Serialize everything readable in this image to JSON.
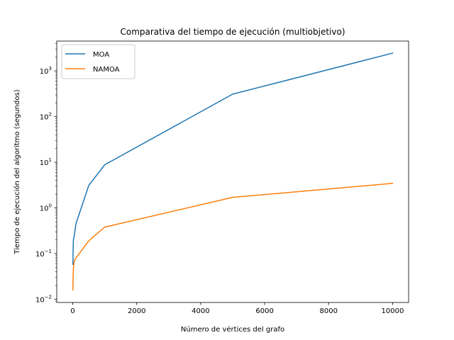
{
  "chart_data": {
    "type": "line",
    "title": "Comparativa del tiempo de ejecución (multiobjetivo)",
    "xlabel": "Número de vértices del grafo",
    "ylabel": "Tiempo de ejecución del algoritmo (segundos)",
    "xlim": [
      -500,
      10500
    ],
    "ylim": [
      0.0085,
      4500
    ],
    "yscale": "log",
    "xticks": [
      0,
      2000,
      4000,
      6000,
      8000,
      10000
    ],
    "xtick_labels": [
      "0",
      "2000",
      "4000",
      "6000",
      "8000",
      "10000"
    ],
    "yticks": [
      0.01,
      0.1,
      1,
      10,
      100,
      1000
    ],
    "ytick_labels": [
      {
        "base": "10",
        "exp": "−2"
      },
      {
        "base": "10",
        "exp": "−1"
      },
      {
        "base": "10",
        "exp": "0"
      },
      {
        "base": "10",
        "exp": "1"
      },
      {
        "base": "10",
        "exp": "2"
      },
      {
        "base": "10",
        "exp": "3"
      }
    ],
    "grid": false,
    "legend": "upper-left",
    "series": [
      {
        "name": "MOA",
        "color": "#1f77b4",
        "x": [
          5,
          10,
          20,
          50,
          100,
          500,
          1000,
          5000,
          10000
        ],
        "y": [
          0.058,
          0.1,
          0.2,
          0.25,
          0.45,
          3.1,
          8.8,
          310,
          2450
        ]
      },
      {
        "name": "NAMOA",
        "color": "#ff7f0e",
        "x": [
          5,
          10,
          20,
          50,
          100,
          500,
          1000,
          5000,
          10000
        ],
        "y": [
          0.016,
          0.028,
          0.048,
          0.07,
          0.08,
          0.19,
          0.38,
          1.7,
          3.45
        ]
      }
    ]
  }
}
